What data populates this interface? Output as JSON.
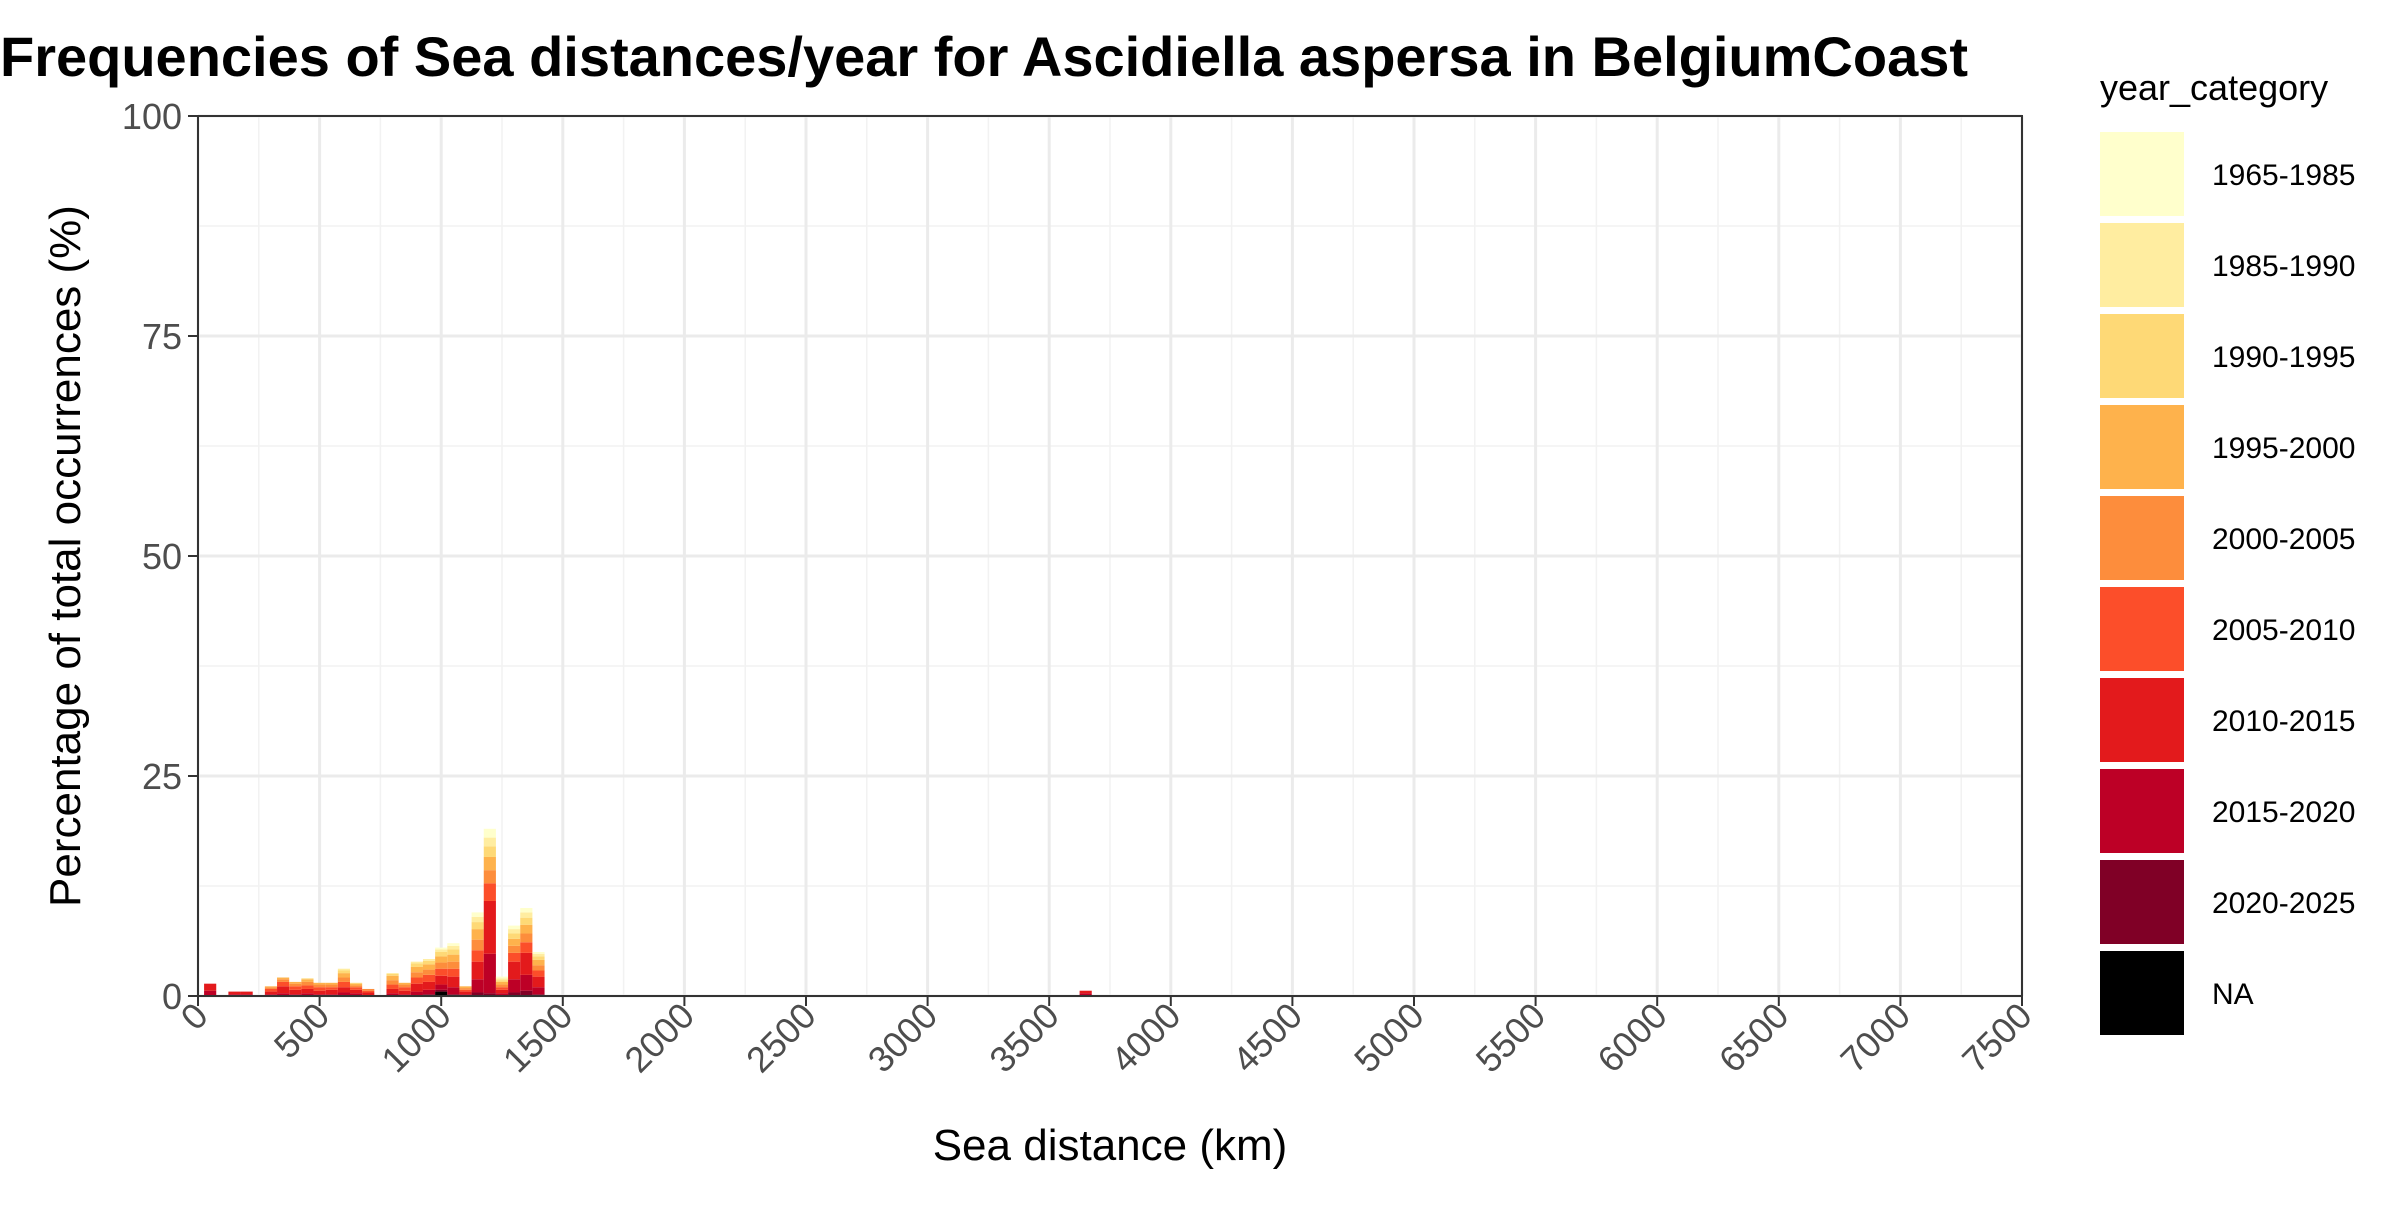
{
  "chart_data": {
    "type": "bar",
    "stacked": true,
    "title": "Frequencies of Sea distances/year for Ascidiella aspersa in BelgiumCoast",
    "xlabel": "Sea distance (km)",
    "ylabel": "Percentage of total occurrences (%)",
    "xlim": [
      0,
      7500
    ],
    "ylim": [
      0,
      100
    ],
    "x_ticks": [
      0,
      500,
      1000,
      1500,
      2000,
      2500,
      3000,
      3500,
      4000,
      4500,
      5000,
      5500,
      6000,
      6500,
      7000,
      7500
    ],
    "y_ticks": [
      0,
      25,
      50,
      75,
      100
    ],
    "bin_width_km": 50,
    "grid": true,
    "legend": {
      "title": "year_category",
      "position": "right",
      "entries": [
        {
          "label": "1965-1985",
          "color": "#FFFFCC"
        },
        {
          "label": "1985-1990",
          "color": "#FFEDA0"
        },
        {
          "label": "1990-1995",
          "color": "#FED976"
        },
        {
          "label": "1995-2000",
          "color": "#FEB24C"
        },
        {
          "label": "2000-2005",
          "color": "#FD8D3C"
        },
        {
          "label": "2005-2010",
          "color": "#FC4E2A"
        },
        {
          "label": "2010-2015",
          "color": "#E31A1C"
        },
        {
          "label": "2015-2020",
          "color": "#BD0026"
        },
        {
          "label": "2020-2025",
          "color": "#800026"
        },
        {
          "label": "NA",
          "color": "#000000"
        }
      ]
    },
    "bins": [
      {
        "x": 50,
        "stack": [
          0,
          0,
          0,
          0,
          0,
          0,
          0.8,
          0.6,
          0,
          0
        ]
      },
      {
        "x": 150,
        "stack": [
          0,
          0,
          0,
          0,
          0,
          0,
          0.3,
          0.2,
          0,
          0
        ]
      },
      {
        "x": 200,
        "stack": [
          0,
          0,
          0,
          0,
          0,
          0,
          0.3,
          0.2,
          0,
          0
        ]
      },
      {
        "x": 300,
        "stack": [
          0,
          0,
          0,
          0.1,
          0.2,
          0.3,
          0.3,
          0.2,
          0,
          0
        ]
      },
      {
        "x": 350,
        "stack": [
          0,
          0,
          0,
          0.2,
          0.3,
          0.5,
          0.8,
          0.3,
          0,
          0
        ]
      },
      {
        "x": 400,
        "stack": [
          0,
          0,
          0,
          0.2,
          0.3,
          0.4,
          0.5,
          0.2,
          0,
          0
        ]
      },
      {
        "x": 450,
        "stack": [
          0,
          0,
          0.1,
          0.3,
          0.4,
          0.4,
          0.5,
          0.3,
          0,
          0
        ]
      },
      {
        "x": 500,
        "stack": [
          0,
          0,
          0,
          0.2,
          0.3,
          0.4,
          0.4,
          0.2,
          0,
          0
        ]
      },
      {
        "x": 550,
        "stack": [
          0,
          0,
          0,
          0.2,
          0.3,
          0.3,
          0.5,
          0.2,
          0,
          0
        ]
      },
      {
        "x": 600,
        "stack": [
          0,
          0.2,
          0.3,
          0.5,
          0.5,
          0.6,
          0.6,
          0.4,
          0,
          0
        ]
      },
      {
        "x": 650,
        "stack": [
          0,
          0,
          0.1,
          0.2,
          0.2,
          0.3,
          0.4,
          0.3,
          0,
          0
        ]
      },
      {
        "x": 700,
        "stack": [
          0,
          0,
          0,
          0,
          0.2,
          0.2,
          0.3,
          0.1,
          0,
          0
        ]
      },
      {
        "x": 800,
        "stack": [
          0,
          0.1,
          0.2,
          0.5,
          0.5,
          0.5,
          0.5,
          0.3,
          0,
          0
        ]
      },
      {
        "x": 850,
        "stack": [
          0,
          0,
          0,
          0.2,
          0.3,
          0.4,
          0.4,
          0.2,
          0,
          0
        ]
      },
      {
        "x": 900,
        "stack": [
          0,
          0.2,
          0.4,
          0.6,
          0.6,
          0.7,
          0.9,
          0.5,
          0,
          0
        ]
      },
      {
        "x": 950,
        "stack": [
          0,
          0.2,
          0.4,
          0.6,
          0.6,
          0.8,
          0.9,
          0.5,
          0.2,
          0
        ]
      },
      {
        "x": 1000,
        "stack": [
          0.2,
          0.3,
          0.5,
          0.7,
          0.7,
          0.8,
          1.0,
          0.6,
          0.2,
          0.5
        ]
      },
      {
        "x": 1050,
        "stack": [
          0.3,
          0.4,
          0.6,
          0.8,
          0.8,
          0.9,
          1.2,
          0.8,
          0.2,
          0
        ]
      },
      {
        "x": 1100,
        "stack": [
          0,
          0,
          0,
          0.2,
          0.2,
          0.2,
          0.3,
          0.2,
          0,
          0
        ]
      },
      {
        "x": 1150,
        "stack": [
          0.5,
          0.6,
          0.8,
          1.2,
          1.2,
          1.3,
          2.0,
          1.5,
          0.4,
          0
        ]
      },
      {
        "x": 1200,
        "stack": [
          1.0,
          1.0,
          1.2,
          1.5,
          1.5,
          2.0,
          6.0,
          4.5,
          0.3,
          0
        ]
      },
      {
        "x": 1250,
        "stack": [
          0.2,
          0.2,
          0.2,
          0.3,
          0.3,
          0.3,
          0.4,
          0.3,
          0,
          0
        ]
      },
      {
        "x": 1300,
        "stack": [
          0.4,
          0.5,
          0.6,
          0.8,
          0.8,
          1.0,
          2.0,
          1.5,
          0.4,
          0
        ]
      },
      {
        "x": 1350,
        "stack": [
          0.5,
          0.6,
          0.8,
          1.0,
          1.0,
          1.2,
          2.5,
          1.8,
          0.6,
          0
        ]
      },
      {
        "x": 1400,
        "stack": [
          0.2,
          0.3,
          0.4,
          0.6,
          0.6,
          0.7,
          1.2,
          0.8,
          0.2,
          0
        ]
      },
      {
        "x": 3650,
        "stack": [
          0,
          0,
          0,
          0,
          0,
          0,
          0.3,
          0.3,
          0,
          0
        ]
      }
    ]
  }
}
